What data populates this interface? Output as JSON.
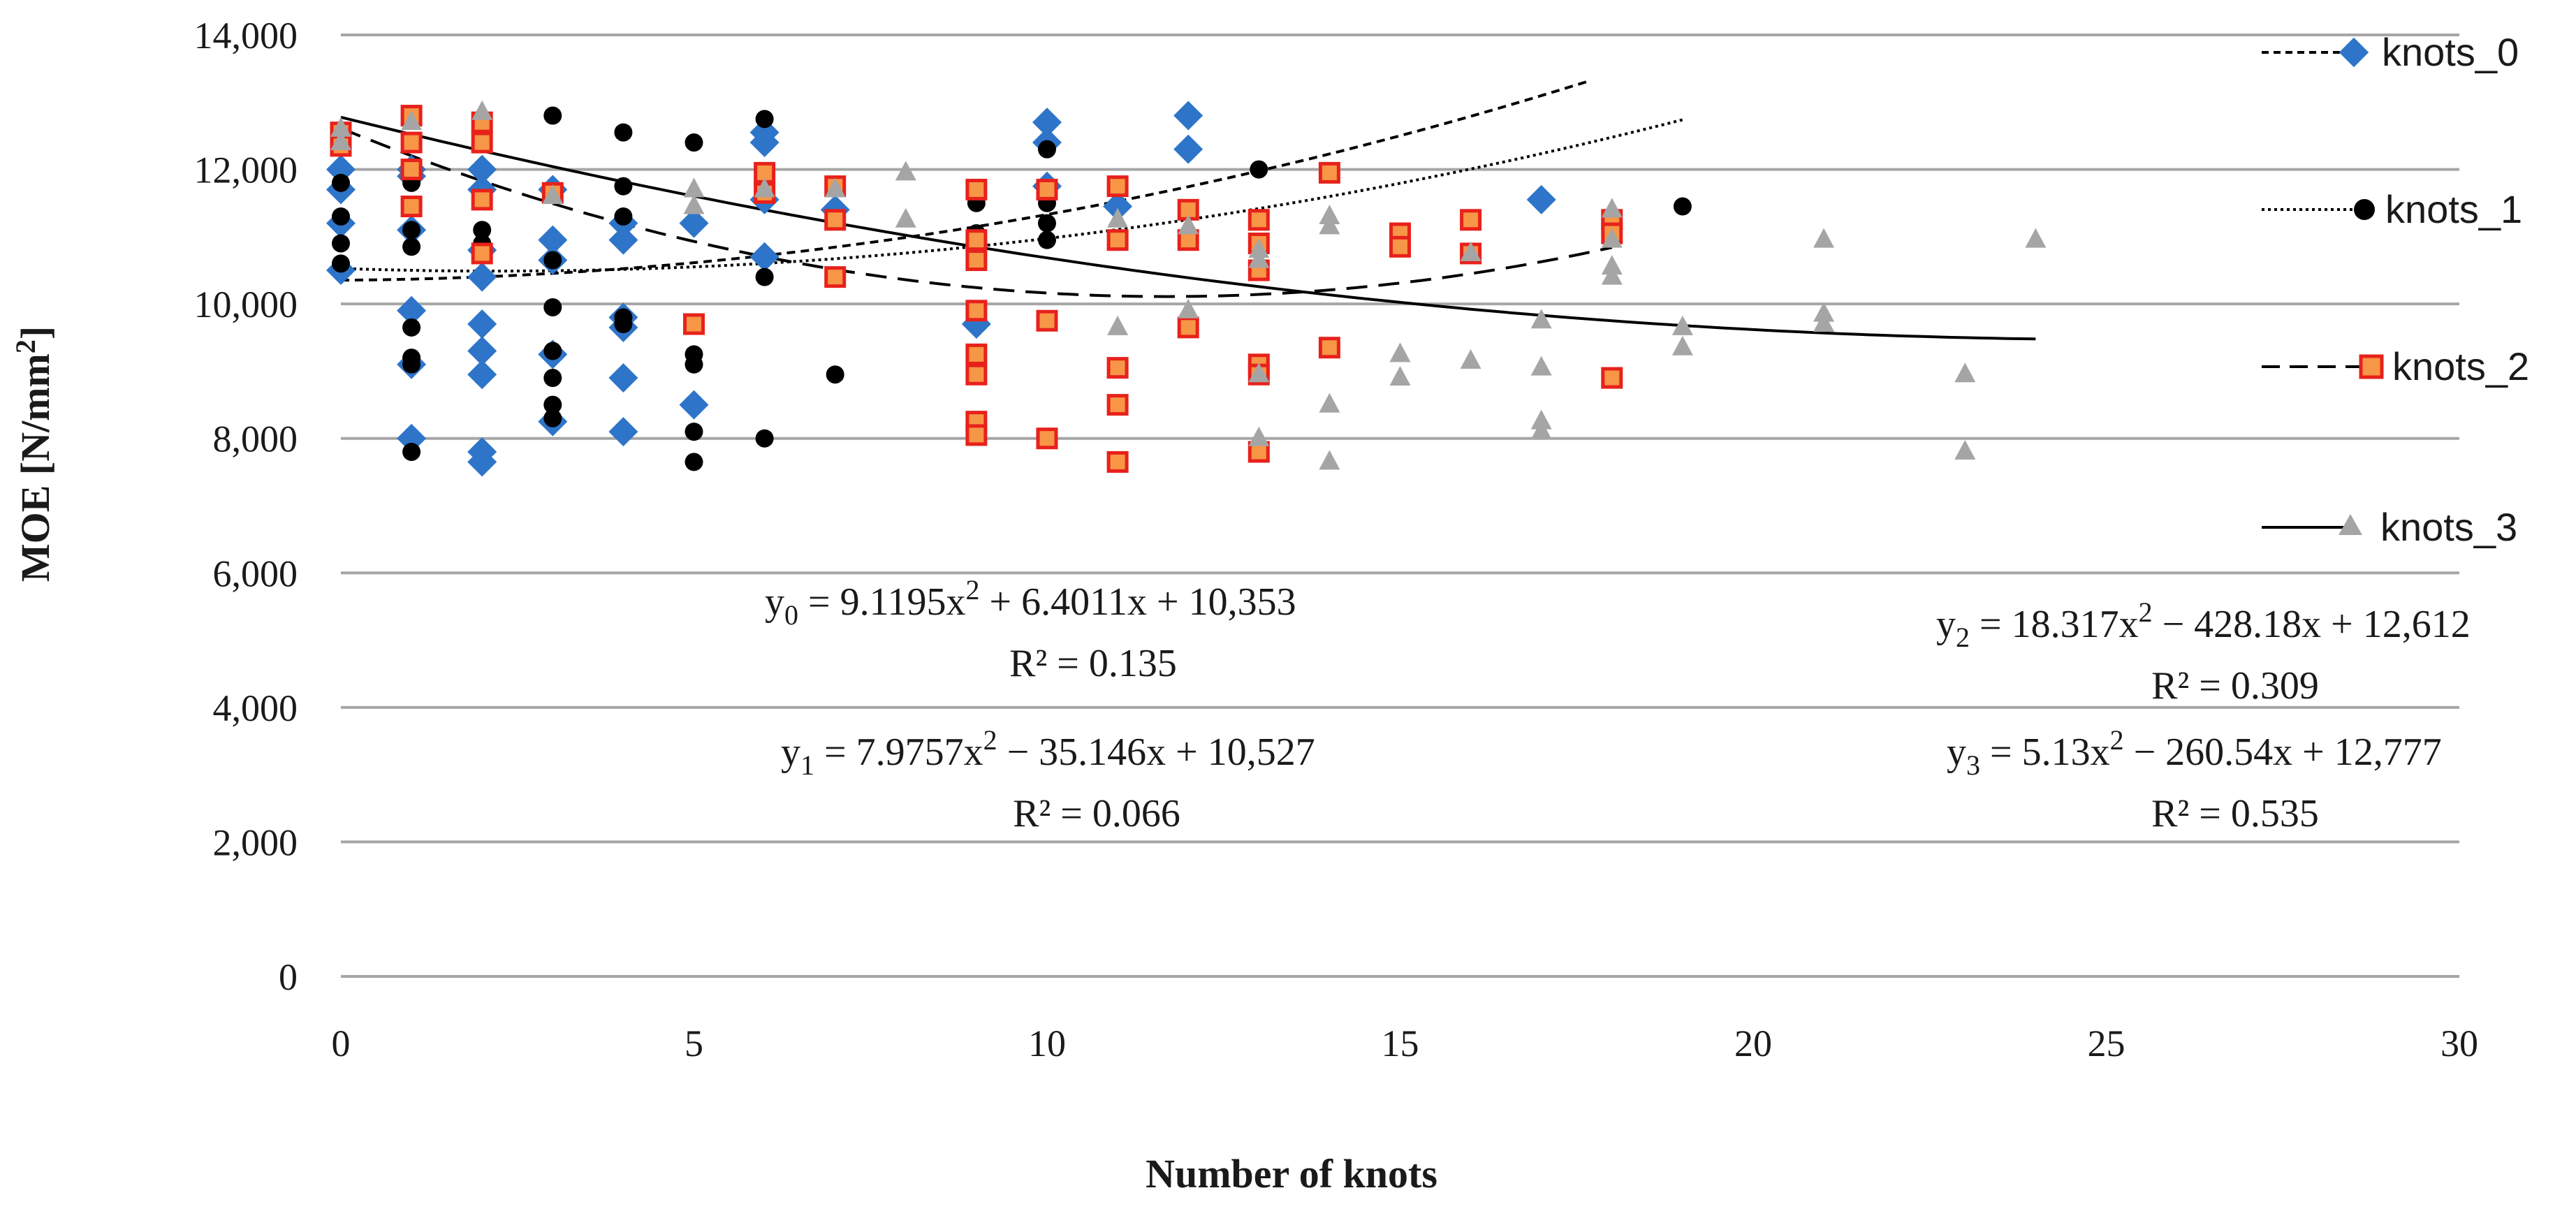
{
  "chart_data": {
    "type": "scatter",
    "xlabel": "Number of knots",
    "ylabel_main": "MOE  [N/mm",
    "ylabel_sup": "2",
    "ylabel_end": "]",
    "xlim": [
      0,
      30
    ],
    "ylim": [
      0,
      14000
    ],
    "xticks": [
      0,
      5,
      10,
      15,
      20,
      25,
      30
    ],
    "yticks": [
      0,
      2000,
      4000,
      6000,
      8000,
      10000,
      12000,
      14000
    ],
    "ytick_labels": [
      "0",
      "2,000",
      "4,000",
      "6,000",
      "8,000",
      "10,000",
      "12,000",
      "14,000"
    ],
    "grid": "horizontal",
    "legend_position": "right",
    "colors": {
      "knots_0": "#2e75c9",
      "knots_1": "#000000",
      "knots_2_fill": "#f79646",
      "knots_2_edge": "#e8211b",
      "knots_3": "#a5a5a5",
      "grid": "#a6a6a6",
      "trend": "#000000"
    },
    "series": [
      {
        "name": "knots_0",
        "marker": "diamond",
        "trendline_style": "short-dash",
        "trend": {
          "a": 9.1195,
          "b": 6.4011,
          "c": 10353,
          "x_range": [
            0,
            17.7
          ]
        },
        "points": [
          [
            0,
            11700
          ],
          [
            0,
            11200
          ],
          [
            0,
            10500
          ],
          [
            0,
            12000
          ],
          [
            1,
            11100
          ],
          [
            1,
            11900
          ],
          [
            1,
            12000
          ],
          [
            1,
            9900
          ],
          [
            1,
            9100
          ],
          [
            1,
            8000
          ],
          [
            2,
            12000
          ],
          [
            2,
            11700
          ],
          [
            2,
            10800
          ],
          [
            2,
            10400
          ],
          [
            2,
            9700
          ],
          [
            2,
            9300
          ],
          [
            2,
            8950
          ],
          [
            2,
            7800
          ],
          [
            2,
            7650
          ],
          [
            3,
            11700
          ],
          [
            3,
            10950
          ],
          [
            3,
            10650
          ],
          [
            3,
            9250
          ],
          [
            3,
            8250
          ],
          [
            4,
            11200
          ],
          [
            4,
            10950
          ],
          [
            4,
            9800
          ],
          [
            4,
            9650
          ],
          [
            4,
            8900
          ],
          [
            4,
            8100
          ],
          [
            5,
            11200
          ],
          [
            5,
            8500
          ],
          [
            6,
            12550
          ],
          [
            6,
            12400
          ],
          [
            6,
            11550
          ],
          [
            6,
            10700
          ],
          [
            7,
            11400
          ],
          [
            9,
            9700
          ],
          [
            10,
            12700
          ],
          [
            10,
            12400
          ],
          [
            10,
            11750
          ],
          [
            11,
            11450
          ],
          [
            12,
            12800
          ],
          [
            12,
            12300
          ],
          [
            17,
            11550
          ]
        ]
      },
      {
        "name": "knots_1",
        "marker": "circle",
        "trendline_style": "dotted",
        "trend": {
          "a": 7.9757,
          "b": -35.146,
          "c": 10527,
          "x_range": [
            0,
            19
          ]
        },
        "points": [
          [
            0,
            11800
          ],
          [
            0,
            11300
          ],
          [
            0,
            10900
          ],
          [
            0,
            10600
          ],
          [
            1,
            11800
          ],
          [
            1,
            11100
          ],
          [
            1,
            10850
          ],
          [
            1,
            9650
          ],
          [
            1,
            9200
          ],
          [
            1,
            9100
          ],
          [
            1,
            7800
          ],
          [
            2,
            11100
          ],
          [
            2,
            10900
          ],
          [
            2,
            10750
          ],
          [
            3,
            12800
          ],
          [
            3,
            10650
          ],
          [
            3,
            9950
          ],
          [
            3,
            9300
          ],
          [
            3,
            8900
          ],
          [
            3,
            8500
          ],
          [
            3,
            8300
          ],
          [
            4,
            12550
          ],
          [
            4,
            11750
          ],
          [
            4,
            11300
          ],
          [
            4,
            9800
          ],
          [
            4,
            9700
          ],
          [
            5,
            12400
          ],
          [
            5,
            9250
          ],
          [
            5,
            9100
          ],
          [
            5,
            8100
          ],
          [
            5,
            7650
          ],
          [
            6,
            12750
          ],
          [
            6,
            10400
          ],
          [
            6,
            8000
          ],
          [
            7,
            8950
          ],
          [
            9,
            11500
          ],
          [
            9,
            11050
          ],
          [
            10,
            12300
          ],
          [
            10,
            11500
          ],
          [
            10,
            11200
          ],
          [
            10,
            10950
          ],
          [
            13,
            12000
          ],
          [
            19,
            11450
          ]
        ]
      },
      {
        "name": "knots_2",
        "marker": "square",
        "trendline_style": "long-dash",
        "trend": {
          "a": 18.317,
          "b": -428.18,
          "c": 12612,
          "x_range": [
            0,
            18
          ]
        },
        "points": [
          [
            0,
            12550
          ],
          [
            0,
            12350
          ],
          [
            1,
            12800
          ],
          [
            1,
            12400
          ],
          [
            1,
            12000
          ],
          [
            1,
            11450
          ],
          [
            2,
            12700
          ],
          [
            2,
            12400
          ],
          [
            2,
            11550
          ],
          [
            2,
            10750
          ],
          [
            3,
            11650
          ],
          [
            5,
            9700
          ],
          [
            6,
            11950
          ],
          [
            6,
            11650
          ],
          [
            7,
            11750
          ],
          [
            7,
            11250
          ],
          [
            7,
            10400
          ],
          [
            9,
            11700
          ],
          [
            9,
            10950
          ],
          [
            9,
            10650
          ],
          [
            9,
            9900
          ],
          [
            9,
            9250
          ],
          [
            9,
            8950
          ],
          [
            9,
            8250
          ],
          [
            9,
            8050
          ],
          [
            10,
            11700
          ],
          [
            10,
            9750
          ],
          [
            10,
            8000
          ],
          [
            11,
            11750
          ],
          [
            11,
            10950
          ],
          [
            11,
            9050
          ],
          [
            11,
            8500
          ],
          [
            11,
            7650
          ],
          [
            12,
            11400
          ],
          [
            12,
            10950
          ],
          [
            12,
            9650
          ],
          [
            13,
            11250
          ],
          [
            13,
            10900
          ],
          [
            13,
            10500
          ],
          [
            13,
            9100
          ],
          [
            13,
            8950
          ],
          [
            13,
            7800
          ],
          [
            14,
            11950
          ],
          [
            14,
            9350
          ],
          [
            15,
            11050
          ],
          [
            15,
            10850
          ],
          [
            16,
            11250
          ],
          [
            16,
            10750
          ],
          [
            18,
            11250
          ],
          [
            18,
            11050
          ],
          [
            18,
            8900
          ]
        ]
      },
      {
        "name": "knots_3",
        "marker": "triangle",
        "trendline_style": "solid",
        "trend": {
          "a": 5.13,
          "b": -260.54,
          "c": 12777,
          "x_range": [
            0,
            24
          ]
        },
        "points": [
          [
            0,
            12600
          ],
          [
            0,
            12400
          ],
          [
            1,
            12700
          ],
          [
            2,
            12850
          ],
          [
            3,
            11600
          ],
          [
            5,
            11700
          ],
          [
            5,
            11450
          ],
          [
            6,
            11700
          ],
          [
            7,
            11700
          ],
          [
            8,
            11950
          ],
          [
            8,
            11250
          ],
          [
            11,
            11250
          ],
          [
            11,
            9650
          ],
          [
            12,
            11150
          ],
          [
            12,
            9900
          ],
          [
            13,
            10800
          ],
          [
            13,
            10650
          ],
          [
            13,
            8950
          ],
          [
            13,
            8000
          ],
          [
            14,
            11300
          ],
          [
            14,
            11150
          ],
          [
            14,
            8500
          ],
          [
            14,
            7650
          ],
          [
            15,
            9250
          ],
          [
            15,
            8900
          ],
          [
            16,
            10750
          ],
          [
            16,
            9150
          ],
          [
            17,
            9750
          ],
          [
            17,
            9050
          ],
          [
            17,
            8250
          ],
          [
            17,
            8100
          ],
          [
            18,
            11400
          ],
          [
            18,
            10950
          ],
          [
            18,
            10550
          ],
          [
            18,
            10400
          ],
          [
            19,
            9650
          ],
          [
            19,
            9350
          ],
          [
            21,
            10950
          ],
          [
            21,
            9850
          ],
          [
            21,
            9700
          ],
          [
            23,
            8950
          ],
          [
            23,
            7800
          ],
          [
            24,
            10950
          ]
        ]
      }
    ],
    "annotations": [
      {
        "name": "eq-y0",
        "base": "y",
        "sub": "0",
        "text": " = 9.1195x",
        "sup": "2",
        "text2": " + 6.4011x + 10,353"
      },
      {
        "name": "r2-y0",
        "text": "R² = 0.135"
      },
      {
        "name": "eq-y1",
        "base": "y",
        "sub": "1",
        "text": " = 7.9757x",
        "sup": "2",
        "text2": " − 35.146x + 10,527"
      },
      {
        "name": "r2-y1",
        "text": "R² = 0.066"
      },
      {
        "name": "eq-y2",
        "base": "y",
        "sub": "2",
        "text": " = 18.317x",
        "sup": "2",
        "text2": " − 428.18x + 12,612"
      },
      {
        "name": "r2-y2",
        "text": "R² = 0.309"
      },
      {
        "name": "eq-y3",
        "base": "y",
        "sub": "3",
        "text": " = 5.13x",
        "sup": "2",
        "text2": " − 260.54x + 12,777"
      },
      {
        "name": "r2-y3",
        "text": "R² = 0.535"
      }
    ]
  }
}
